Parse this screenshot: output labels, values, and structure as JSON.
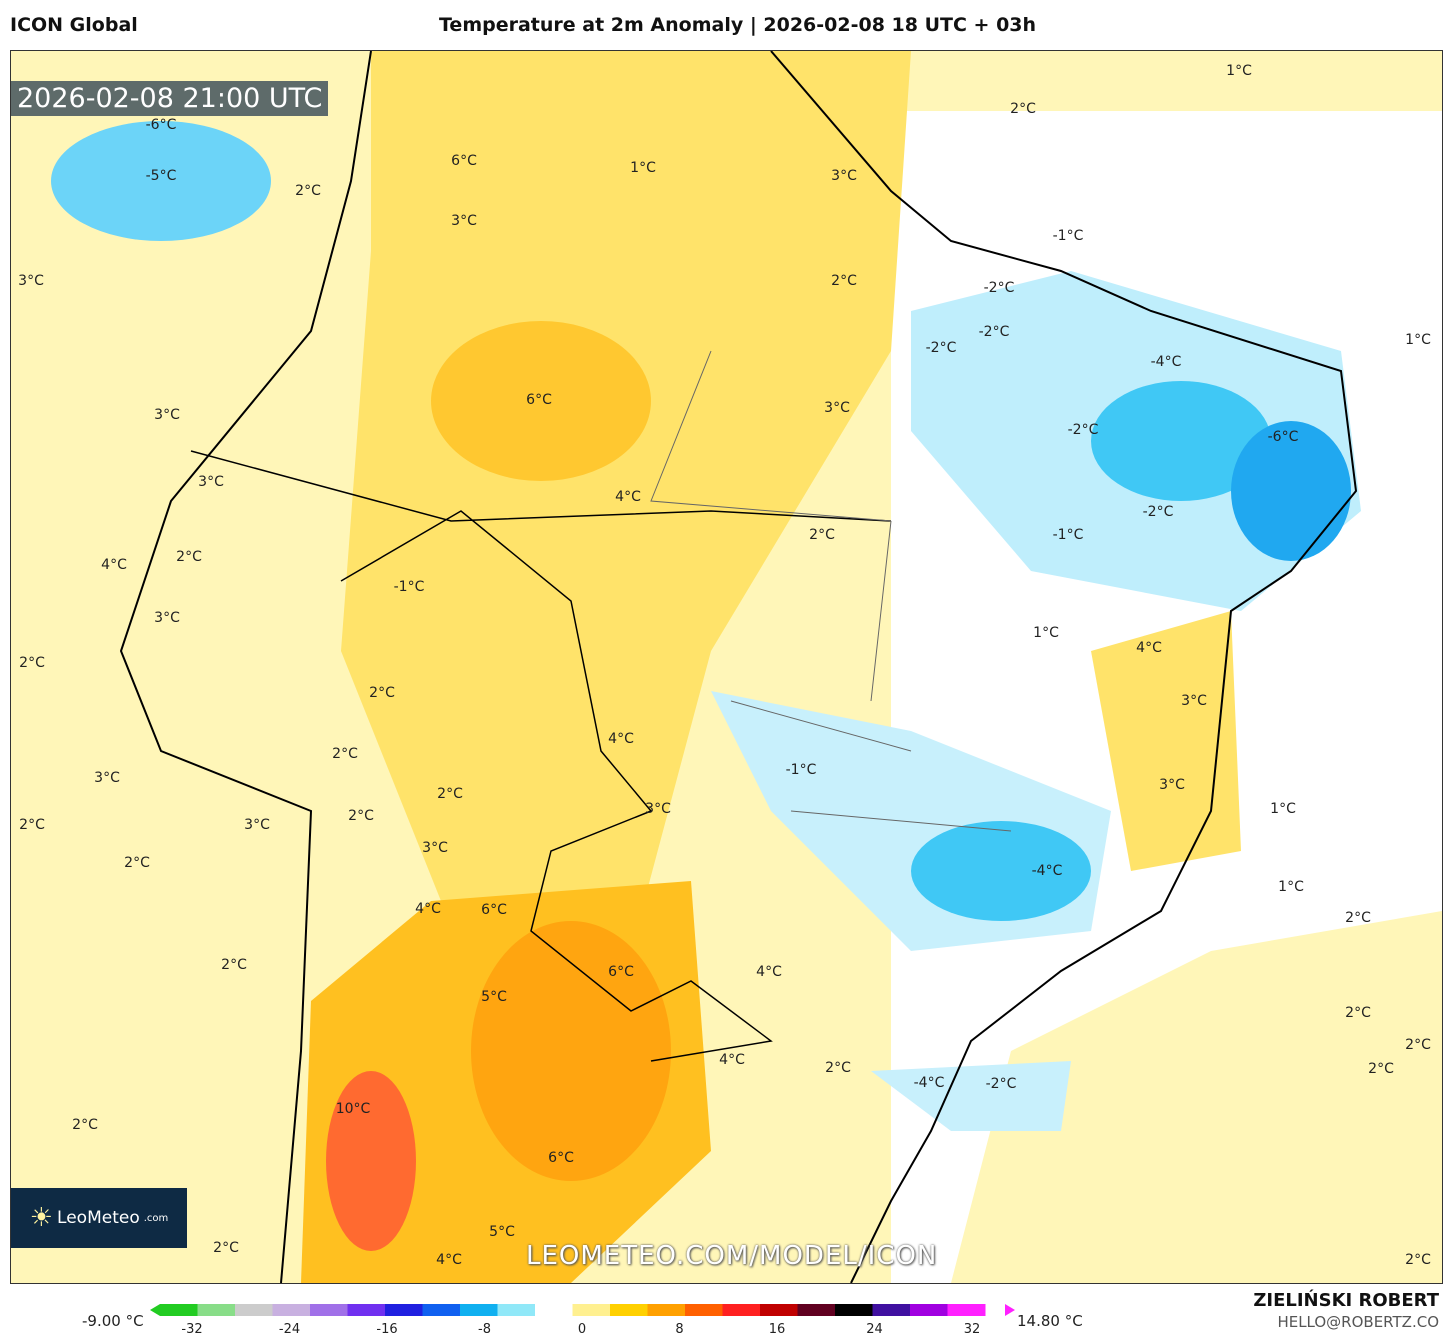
{
  "header": {
    "model": "ICON Global",
    "title": "Temperature at 2m Anomaly | 2026-02-08 18 UTC + 03h"
  },
  "map": {
    "valid_time": "2026-02-08 21:00 UTC",
    "watermark": "LEOMETEO.COM/MODEL/ICON",
    "logo": "LeoMeteo",
    "logo_suffix": ".com",
    "labels": [
      "1°C",
      "2°C",
      "-6°C",
      "6°C",
      "1°C",
      "3°C",
      "-5°C",
      "2°C",
      "3°C",
      "-1°C",
      "2°C",
      "-2°C",
      "3°C",
      "-2°C",
      "-2°C",
      "1°C",
      "-4°C",
      "6°C",
      "3°C",
      "3°C",
      "-2°C",
      "-6°C",
      "3°C",
      "4°C",
      "-2°C",
      "2°C",
      "-1°C",
      "2°C",
      "4°C",
      "-1°C",
      "3°C",
      "1°C",
      "4°C",
      "2°C",
      "2°C",
      "3°C",
      "4°C",
      "2°C",
      "-1°C",
      "3°C",
      "3°C",
      "2°C",
      "3°C",
      "1°C",
      "2°C",
      "3°C",
      "2°C",
      "3°C",
      "2°C",
      "-4°C",
      "1°C",
      "4°C",
      "6°C",
      "2°C",
      "2°C",
      "6°C",
      "4°C",
      "5°C",
      "2°C",
      "2°C",
      "4°C",
      "2°C",
      "2°C",
      "-4°C",
      "-2°C",
      "10°C",
      "2°C",
      "6°C",
      "5°C",
      "2°C",
      "4°C",
      "2°C"
    ]
  },
  "colorbar": {
    "min_value": "-9.00 °C",
    "max_value": "14.80 °C",
    "ticks": [
      "-32",
      "-24",
      "-16",
      "-8",
      "0",
      "8",
      "16",
      "24",
      "32"
    ],
    "colors": [
      "#22cc22",
      "#88dd88",
      "#cccccc",
      "#c8b0e0",
      "#a070e8",
      "#7030f0",
      "#2020e0",
      "#1060f0",
      "#10b0f0",
      "#90e8f8",
      "#ffffff",
      "#fff090",
      "#ffd000",
      "#ffa000",
      "#ff6000",
      "#ff2020",
      "#c00000",
      "#600020",
      "#000000",
      "#4010a0",
      "#a000e0",
      "#ff20ff"
    ]
  },
  "author": {
    "name": "ZIELIŃSKI ROBERT",
    "email": "HELLO@ROBERTZ.CO"
  }
}
